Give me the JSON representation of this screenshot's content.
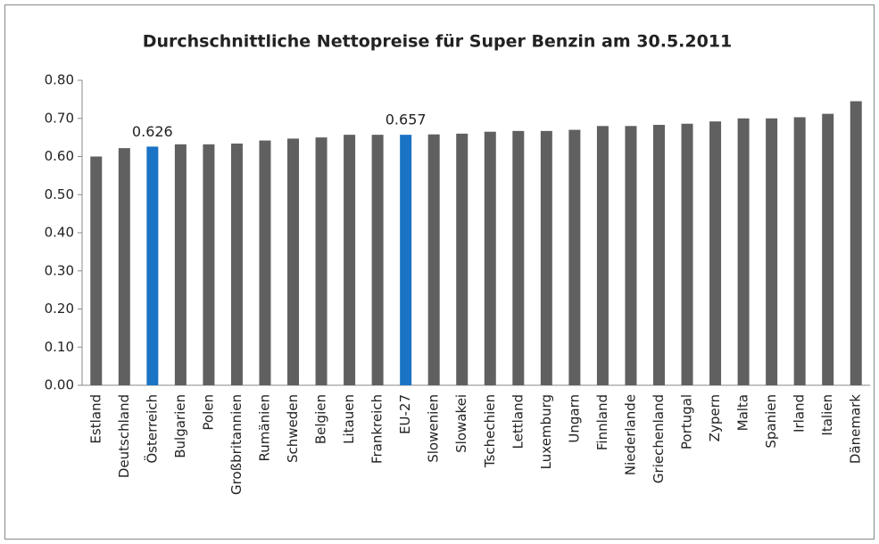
{
  "chart_data": {
    "type": "bar",
    "title": "Durchschnittliche Nettopreise für Super Benzin am 30.5.2011",
    "categories": [
      "Estland",
      "Deutschland",
      "Österreich",
      "Bulgarien",
      "Polen",
      "Großbritannien",
      "Rumänien",
      "Schweden",
      "Belgien",
      "Litauen",
      "Frankreich",
      "EU-27",
      "Slowenien",
      "Slowakei",
      "Tschechien",
      "Lettland",
      "Luxemburg",
      "Ungarn",
      "Finnland",
      "Niederlande",
      "Griechenland",
      "Portugal",
      "Zypern",
      "Malta",
      "Spanien",
      "Irland",
      "Italien",
      "Dänemark"
    ],
    "values": [
      0.6,
      0.622,
      0.626,
      0.632,
      0.632,
      0.634,
      0.642,
      0.647,
      0.65,
      0.657,
      0.657,
      0.657,
      0.658,
      0.66,
      0.665,
      0.667,
      0.667,
      0.67,
      0.68,
      0.68,
      0.683,
      0.686,
      0.692,
      0.7,
      0.7,
      0.703,
      0.712,
      0.745
    ],
    "value_labels": [
      null,
      null,
      "0.626",
      null,
      null,
      null,
      null,
      null,
      null,
      null,
      null,
      "0.657",
      null,
      null,
      null,
      null,
      null,
      null,
      null,
      null,
      null,
      null,
      null,
      null,
      null,
      null,
      null,
      null
    ],
    "colors": [
      "#606060",
      "#606060",
      "#1a73c4",
      "#606060",
      "#606060",
      "#606060",
      "#606060",
      "#606060",
      "#606060",
      "#606060",
      "#606060",
      "#1a73c4",
      "#606060",
      "#606060",
      "#606060",
      "#606060",
      "#606060",
      "#606060",
      "#606060",
      "#606060",
      "#606060",
      "#606060",
      "#606060",
      "#606060",
      "#606060",
      "#606060",
      "#606060",
      "#606060"
    ],
    "ylim": [
      0,
      0.8
    ],
    "yticks": [
      {
        "value": 0,
        "label": "0.00"
      },
      {
        "value": 0.1,
        "label": "0.10"
      },
      {
        "value": 0.2,
        "label": "0.20"
      },
      {
        "value": 0.3,
        "label": "0.30"
      },
      {
        "value": 0.4,
        "label": "0.40"
      },
      {
        "value": 0.5,
        "label": "0.50"
      },
      {
        "value": 0.6,
        "label": "0.60"
      },
      {
        "value": 0.7,
        "label": "0.70"
      },
      {
        "value": 0.8,
        "label": "0.80"
      }
    ],
    "grid": false
  }
}
